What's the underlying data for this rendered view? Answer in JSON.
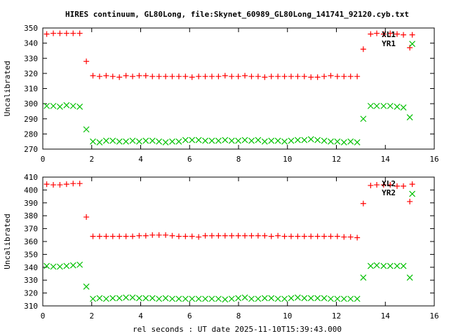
{
  "title": "HIRES continuum, GL80Long, file:Skynet_60989_GL80Long_141741_92120.cyb.txt",
  "xlabel": "rel seconds : UT date 2025-11-10T15:39:43.000",
  "colors": {
    "xl": "#ff0000",
    "yr": "#00c000",
    "axis": "#000000"
  },
  "chart_data": [
    {
      "type": "scatter",
      "ylabel": "Uncalibrated",
      "xlim": [
        0,
        16
      ],
      "ylim": [
        270,
        350
      ],
      "xticks": [
        "0",
        "2",
        "4",
        "6",
        "8",
        "10",
        "12",
        "14",
        "16"
      ],
      "yticks": [
        "270",
        "280",
        "290",
        "300",
        "310",
        "320",
        "330",
        "340",
        "350"
      ],
      "legend_placement": "top-right",
      "x": [
        0.16,
        0.43,
        0.7,
        0.97,
        1.24,
        1.51,
        1.78,
        2.05,
        2.32,
        2.59,
        2.86,
        3.13,
        3.4,
        3.67,
        3.94,
        4.21,
        4.48,
        4.75,
        5.02,
        5.29,
        5.56,
        5.83,
        6.1,
        6.37,
        6.64,
        6.91,
        7.18,
        7.45,
        7.72,
        7.99,
        8.26,
        8.53,
        8.8,
        9.07,
        9.34,
        9.61,
        9.88,
        10.15,
        10.42,
        10.69,
        10.96,
        11.23,
        11.5,
        11.77,
        12.04,
        12.31,
        12.58,
        12.85,
        13.1,
        13.4,
        13.65,
        13.93,
        14.2,
        14.48,
        14.74,
        15.0,
        15.1
      ],
      "series": [
        {
          "name": "XL1",
          "marker": "plus",
          "values": [
            346,
            346.5,
            346.5,
            346.5,
            346.5,
            346.5,
            328,
            318.5,
            318,
            318.5,
            318,
            317.5,
            318.5,
            318,
            318.5,
            318.5,
            318,
            318,
            318,
            318,
            318,
            318,
            317.5,
            318,
            318,
            318,
            318,
            318.5,
            318,
            318,
            318.5,
            318,
            318,
            317.5,
            318,
            318,
            318,
            318,
            318,
            318,
            317.5,
            317.5,
            318,
            318.5,
            318,
            318,
            318,
            318,
            336,
            346,
            346.5,
            346,
            346.5,
            346,
            345.5,
            337,
            345.5
          ]
        },
        {
          "name": "YR1",
          "marker": "cross",
          "values": [
            298.5,
            298.5,
            298,
            299,
            298.5,
            298,
            283,
            275,
            274.5,
            275.5,
            275.5,
            275,
            275,
            275.5,
            275,
            275.5,
            275.5,
            275,
            274.5,
            275,
            275,
            276,
            276,
            276,
            275.5,
            275.5,
            275.5,
            276,
            275.5,
            275.5,
            276,
            275.5,
            276,
            275,
            275.5,
            275.5,
            275,
            275.5,
            276,
            276,
            276.5,
            276,
            275.5,
            275,
            275,
            274.5,
            275,
            274.5,
            290,
            298.5,
            298.5,
            298.5,
            298.5,
            298,
            297.5,
            291,
            339.5
          ]
        }
      ]
    },
    {
      "type": "scatter",
      "ylabel": "Uncalibrated",
      "xlim": [
        0,
        16
      ],
      "ylim": [
        310,
        410
      ],
      "xticks": [
        "0",
        "2",
        "4",
        "6",
        "8",
        "10",
        "12",
        "14",
        "16"
      ],
      "yticks": [
        "310",
        "320",
        "330",
        "340",
        "350",
        "360",
        "370",
        "380",
        "390",
        "400",
        "410"
      ],
      "legend_placement": "top-right",
      "x": [
        0.16,
        0.43,
        0.7,
        0.97,
        1.24,
        1.51,
        1.78,
        2.05,
        2.32,
        2.59,
        2.86,
        3.13,
        3.4,
        3.67,
        3.94,
        4.21,
        4.48,
        4.75,
        5.02,
        5.29,
        5.56,
        5.83,
        6.1,
        6.37,
        6.64,
        6.91,
        7.18,
        7.45,
        7.72,
        7.99,
        8.26,
        8.53,
        8.8,
        9.07,
        9.34,
        9.61,
        9.88,
        10.15,
        10.42,
        10.69,
        10.96,
        11.23,
        11.5,
        11.77,
        12.04,
        12.31,
        12.58,
        12.85,
        13.1,
        13.4,
        13.65,
        13.93,
        14.2,
        14.48,
        14.74,
        15.0,
        15.1
      ],
      "series": [
        {
          "name": "XL2",
          "marker": "plus",
          "values": [
            404.5,
            404,
            404,
            404.5,
            405,
            405,
            379,
            364,
            364,
            364,
            364,
            364,
            364,
            364,
            364.5,
            364.5,
            365,
            365,
            365,
            364.5,
            364,
            364,
            364,
            363.5,
            364.5,
            364.5,
            364.5,
            364.5,
            364.5,
            364.5,
            364.5,
            364.5,
            364.5,
            364.5,
            364,
            364.5,
            364,
            364,
            364,
            364,
            364,
            364,
            364,
            364,
            364,
            363.5,
            363.5,
            363,
            389.5,
            403.5,
            404,
            404,
            404,
            403,
            403,
            391,
            404.5
          ]
        },
        {
          "name": "YR2",
          "marker": "cross",
          "values": [
            341,
            340.5,
            340.5,
            341,
            341.5,
            342,
            325,
            315.5,
            316,
            315.5,
            316,
            316,
            316.5,
            316.5,
            316,
            316,
            316,
            315.5,
            316,
            315.5,
            315.5,
            315.5,
            315.5,
            315.5,
            315.5,
            315.5,
            315.5,
            315,
            315.5,
            316,
            316.5,
            315.5,
            315.5,
            316,
            316,
            315.5,
            315.5,
            316,
            316.5,
            316,
            316,
            316,
            316,
            315.5,
            315.5,
            315.5,
            315.5,
            315.5,
            332,
            341,
            341.5,
            341,
            341,
            341,
            341,
            332,
            397
          ]
        }
      ]
    }
  ]
}
